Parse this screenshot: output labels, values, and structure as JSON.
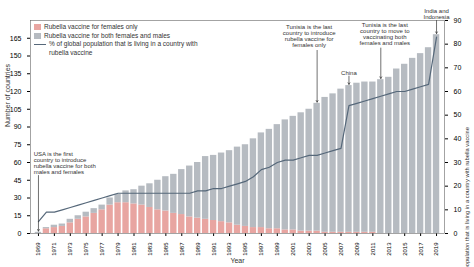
{
  "chart_data": {
    "type": "bar",
    "stacked": true,
    "xlabel": "Year",
    "ylabel": "Number of countries",
    "y2label": "% of global population that is living in a country with rubella vaccine",
    "x": [
      1969,
      1970,
      1971,
      1972,
      1973,
      1974,
      1975,
      1976,
      1977,
      1978,
      1979,
      1980,
      1981,
      1982,
      1983,
      1984,
      1985,
      1986,
      1987,
      1988,
      1989,
      1990,
      1991,
      1992,
      1993,
      1994,
      1995,
      1996,
      1997,
      1998,
      1999,
      2000,
      2001,
      2002,
      2003,
      2004,
      2005,
      2006,
      2007,
      2008,
      2009,
      2010,
      2011,
      2012,
      2013,
      2014,
      2015,
      2016,
      2017,
      2018,
      2019
    ],
    "xlim": [
      1968,
      2020
    ],
    "xticks": [
      1969,
      1971,
      1973,
      1975,
      1977,
      1979,
      1981,
      1983,
      1985,
      1987,
      1989,
      1991,
      1993,
      1995,
      1997,
      1999,
      2001,
      2003,
      2005,
      2007,
      2009,
      2011,
      2013,
      2015,
      2017,
      2019
    ],
    "ylim": [
      0,
      180
    ],
    "yticks": [
      0,
      15,
      30,
      45,
      60,
      75,
      90,
      105,
      120,
      135,
      150,
      165
    ],
    "y2lim": [
      0,
      90
    ],
    "y2ticks": [
      0,
      10,
      20,
      30,
      40,
      50,
      60,
      70,
      80,
      90
    ],
    "grid": false,
    "legend": "top-left",
    "series": [
      {
        "name": "Rubella vaccine for females only",
        "type": "bar",
        "color": "#e8a5a1",
        "values": [
          0,
          4,
          5,
          6,
          9,
          12,
          14,
          17,
          20,
          24,
          26,
          26,
          25,
          24,
          22,
          20,
          19,
          17,
          16,
          14,
          13,
          12,
          11,
          10,
          9,
          7,
          6,
          5,
          5,
          4,
          4,
          3,
          3,
          2,
          2,
          2,
          1,
          1,
          1,
          1,
          1,
          1,
          1,
          0,
          0,
          0,
          0,
          0,
          0,
          0,
          0
        ]
      },
      {
        "name": "Rubella vaccine for both females and males",
        "type": "bar",
        "color": "#b6bbc1",
        "values": [
          1,
          1,
          2,
          2,
          3,
          3,
          4,
          4,
          4,
          6,
          7,
          10,
          12,
          16,
          20,
          25,
          29,
          33,
          38,
          43,
          47,
          53,
          55,
          58,
          61,
          66,
          69,
          75,
          80,
          84,
          88,
          93,
          96,
          100,
          103,
          108,
          114,
          117,
          121,
          124,
          126,
          127,
          127,
          130,
          132,
          139,
          143,
          148,
          152,
          157,
          168
        ]
      },
      {
        "name": "% of global population that is living in a country with rubella vaccine",
        "type": "line",
        "axis": "y2",
        "color": "#56687a",
        "values": [
          5,
          9,
          9,
          10,
          11,
          12,
          13,
          14,
          15,
          16,
          17,
          17,
          17,
          17,
          17,
          17,
          17,
          17,
          17,
          17,
          18,
          18,
          19,
          19,
          20,
          21,
          22,
          24,
          27,
          28,
          30,
          31,
          31,
          32,
          33,
          33,
          34,
          35,
          36,
          54,
          55,
          56,
          57,
          58,
          59,
          60,
          60,
          61,
          62,
          63,
          83
        ]
      }
    ],
    "annotations": [
      {
        "text": "USA is the first\ncountry to introduce\nrubella vaccine for both\nmales and females",
        "x": 1969
      },
      {
        "text": "Tunisia is the last\ncountry to introduce\nrubella vaccine for\nfemales only",
        "x": 2004
      },
      {
        "text": "China",
        "x": 2008
      },
      {
        "text": "Tunisia is the last\ncountry to move to\nvaccinating both\nfemales and males",
        "x": 2012
      },
      {
        "text": "India and\nIndonesia",
        "x": 2019
      }
    ]
  }
}
